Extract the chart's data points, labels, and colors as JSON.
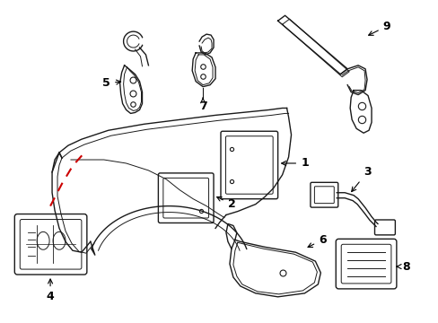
{
  "bg_color": "#ffffff",
  "line_color": "#1a1a1a",
  "red_dash_color": "#cc0000",
  "label_fontsize": 9,
  "fig_width": 4.89,
  "fig_height": 3.6,
  "dpi": 100
}
